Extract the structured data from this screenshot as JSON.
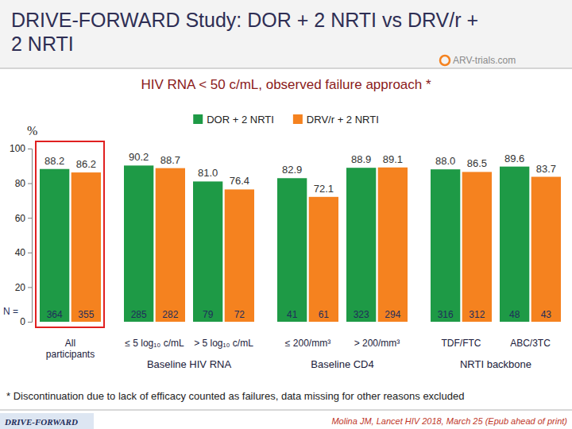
{
  "chart_data": {
    "type": "bar",
    "title": "DRIVE-FORWARD Study: DOR + 2 NRTI vs DRV/r + 2 NRTI",
    "subtitle": "HIV RNA < 50 c/mL, observed failure approach *",
    "y_label": "%",
    "categories": [
      "All participants",
      "≤ 5 log₁₀ c/mL",
      "> 5 log₁₀ c/mL",
      "≤ 200/mm³",
      "> 200/mm³",
      "TDF/FTC",
      "ABC/3TC"
    ],
    "group_labels": [
      {
        "label": "Baseline HIV RNA",
        "from": 1,
        "to": 2
      },
      {
        "label": "Baseline CD4",
        "from": 3,
        "to": 4
      },
      {
        "label": "NRTI backbone",
        "from": 5,
        "to": 6
      }
    ],
    "series": [
      {
        "name": "DOR + 2 NRTI",
        "color": "#1e9a46",
        "values": [
          88.2,
          90.2,
          81.0,
          82.9,
          88.9,
          88.0,
          89.6
        ],
        "value_labels": [
          "88.2",
          "90.2",
          "81.0",
          "82.9",
          "88.9",
          "88.0",
          "89.6"
        ],
        "n": [
          364,
          285,
          79,
          41,
          323,
          316,
          48
        ]
      },
      {
        "name": "DRV/r + 2 NRTI",
        "color": "#f5821f",
        "values": [
          86.2,
          88.7,
          76.4,
          72.1,
          89.1,
          86.5,
          83.7
        ],
        "value_labels": [
          "86.2",
          "88.7",
          "76.4",
          "72.1",
          "89.1",
          "86.5",
          "83.7"
        ],
        "n": [
          355,
          282,
          72,
          61,
          294,
          312,
          43
        ]
      }
    ],
    "n_label": "N =",
    "ylim": [
      0,
      100
    ],
    "yticks": [
      0,
      20,
      40,
      60,
      80,
      100
    ],
    "grid": false,
    "legend": "top",
    "data_labels": true,
    "footnote": "* Discontinuation due to lack of efficacy counted as failures, data missing for other reasons excluded",
    "source": "Molina JM, Lancet HIV 2018, March 25 (Epub ahead of print)",
    "study_tag": "DRIVE-FORWARD",
    "logo": "ARV-trials.com"
  }
}
